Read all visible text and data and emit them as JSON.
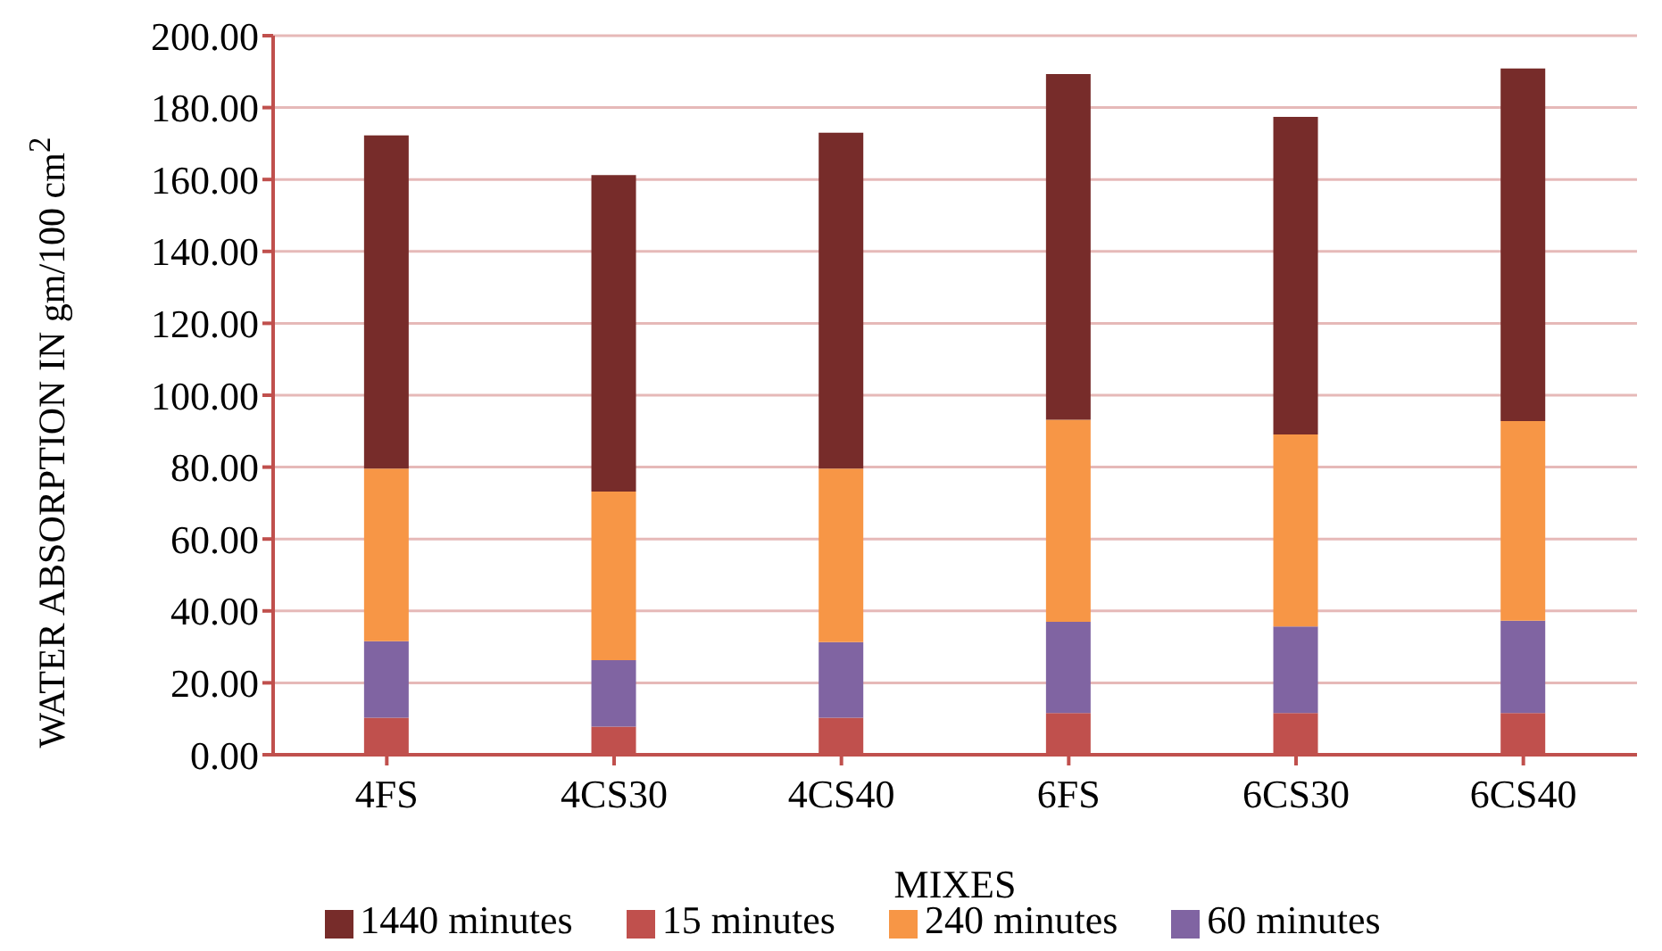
{
  "chart_data": {
    "type": "bar",
    "stacked": true,
    "xlabel": "MIXES",
    "ylabel": "WATER ABSORPTION IN gm/100 cm$^{2}$",
    "categories": [
      "4FS",
      "4CS30",
      "4CS40",
      "6FS",
      "6CS30",
      "6CS40"
    ],
    "series": [
      {
        "name": "15 minutes",
        "color": "#c0504d",
        "values": [
          10.3,
          7.8,
          10.3,
          11.6,
          11.6,
          11.6
        ]
      },
      {
        "name": "60 minutes",
        "color": "#8064a2",
        "values": [
          21.3,
          18.5,
          21.0,
          25.4,
          24.1,
          25.7
        ]
      },
      {
        "name": "240 minutes",
        "color": "#f79646",
        "values": [
          48.0,
          46.9,
          48.3,
          56.2,
          53.4,
          55.5
        ]
      },
      {
        "name": "1440 minutes",
        "color": "#772c2a",
        "values": [
          92.7,
          88.0,
          93.4,
          96.1,
          88.3,
          98.1
        ]
      }
    ],
    "ylim": [
      0,
      200
    ],
    "yticks": [
      {
        "value": 0,
        "label": "0.00"
      },
      {
        "value": 20,
        "label": "20.00"
      },
      {
        "value": 40,
        "label": "40.00"
      },
      {
        "value": 60,
        "label": "60.00"
      },
      {
        "value": 80,
        "label": "80.00"
      },
      {
        "value": 100,
        "label": "100.00"
      },
      {
        "value": 120,
        "label": "120.00"
      },
      {
        "value": 140,
        "label": "140.00"
      },
      {
        "value": 160,
        "label": "160.00"
      },
      {
        "value": 180,
        "label": "180.00"
      },
      {
        "value": 200,
        "label": "200.00"
      }
    ],
    "grid": "y",
    "legend": "bottom"
  }
}
